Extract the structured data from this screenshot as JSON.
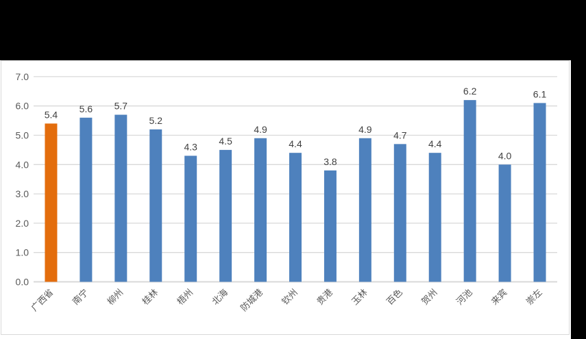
{
  "canvas": {
    "background_color": "#000000",
    "panel_background_color": "#ffffff",
    "panel_border_color": "#d9d9d9"
  },
  "chart_data": {
    "type": "bar",
    "title": "",
    "xlabel": "",
    "ylabel": "",
    "categories": [
      "广西省",
      "南宁",
      "柳州",
      "桂林",
      "梧州",
      "北海",
      "防城港",
      "钦州",
      "贵港",
      "玉林",
      "百色",
      "贺州",
      "河池",
      "来宾",
      "崇左"
    ],
    "values": [
      5.4,
      5.6,
      5.7,
      5.2,
      4.3,
      4.5,
      4.9,
      4.4,
      3.8,
      4.9,
      4.7,
      4.4,
      6.2,
      4.0,
      6.1
    ],
    "data_labels": [
      "5.4",
      "5.6",
      "5.7",
      "5.2",
      "4.3",
      "4.5",
      "4.9",
      "4.4",
      "3.8",
      "4.9",
      "4.7",
      "4.4",
      "6.2",
      "4.0",
      "6.1"
    ],
    "ylim": [
      0.0,
      7.0
    ],
    "ytick_step": 1.0,
    "ytick_labels": [
      "0.0",
      "1.0",
      "2.0",
      "3.0",
      "4.0",
      "5.0",
      "6.0",
      "7.0"
    ],
    "grid": true,
    "legend": false,
    "x_labels_rotation_deg": 45,
    "bar_color": "#4e81bd",
    "highlight_index": 0,
    "highlight_color": "#e36d0d",
    "gridline_color": "#d9d9d9",
    "axis_line_color": "#d9d9d9",
    "data_label_color": "#404040",
    "axis_label_color": "#595959"
  }
}
